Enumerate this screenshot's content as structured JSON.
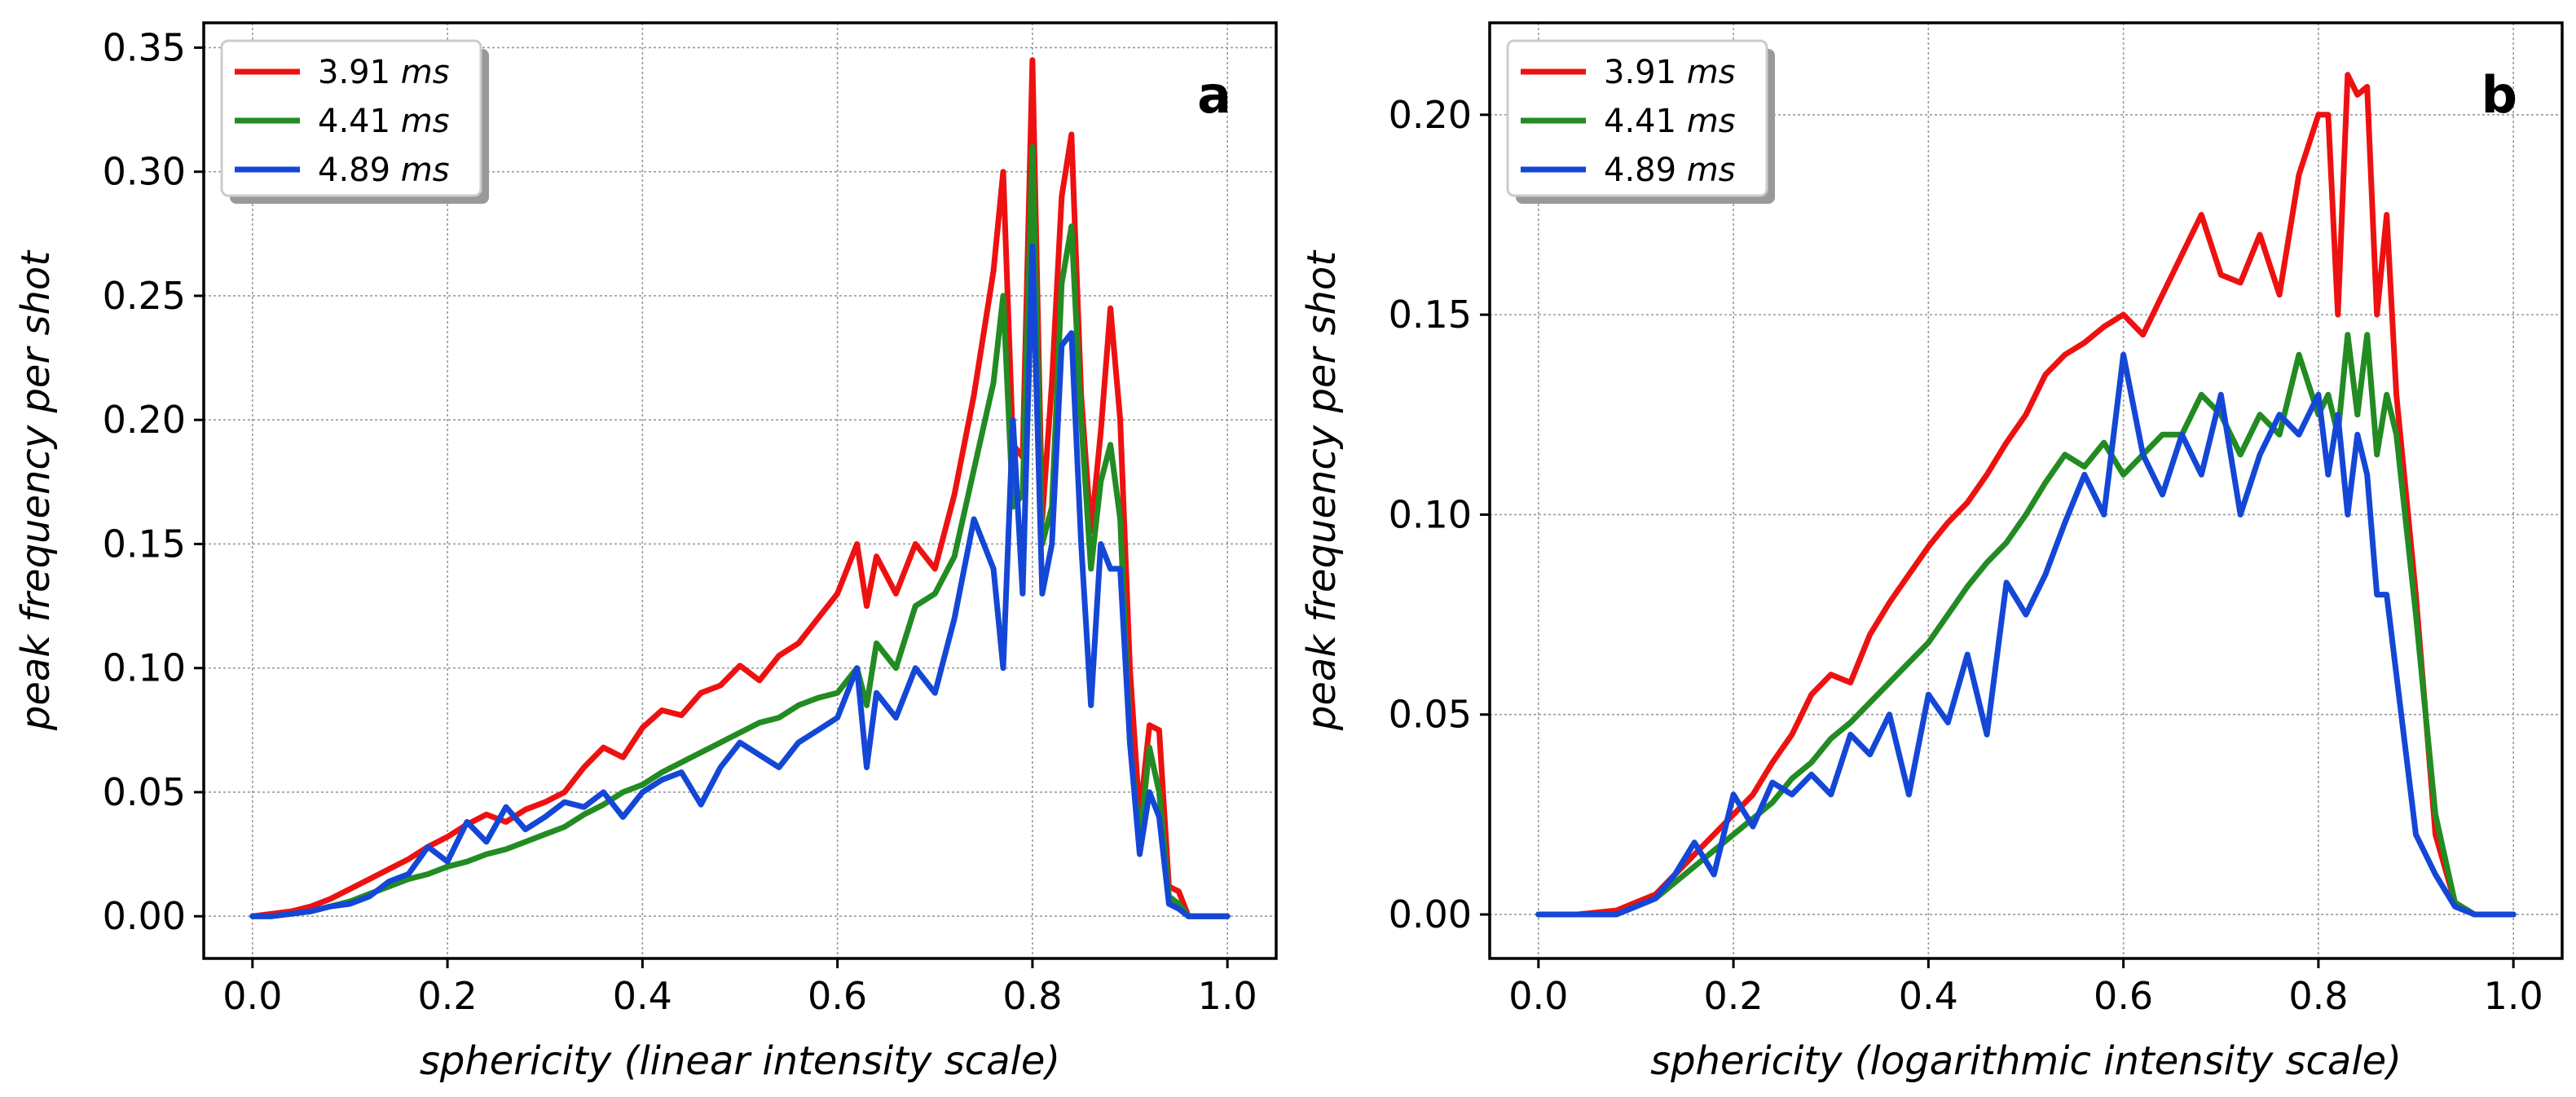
{
  "chart_data": [
    {
      "type": "line",
      "panel_label": "a",
      "xlabel": "sphericity (linear intensity scale)",
      "ylabel": "peak frequency per shot",
      "xlim": [
        -0.05,
        1.05
      ],
      "ylim": [
        -0.017,
        0.36
      ],
      "xticks": [
        0.0,
        0.2,
        0.4,
        0.6,
        0.8,
        1.0
      ],
      "xtick_labels": [
        "0.0",
        "0.2",
        "0.4",
        "0.6",
        "0.8",
        "1.0"
      ],
      "yticks": [
        0.0,
        0.05,
        0.1,
        0.15,
        0.2,
        0.25,
        0.3,
        0.35
      ],
      "ytick_labels": [
        "0.00",
        "0.05",
        "0.10",
        "0.15",
        "0.20",
        "0.25",
        "0.30",
        "0.35"
      ],
      "grid": true,
      "legend_position": "top-left",
      "series": [
        {
          "name": "3.91",
          "unit": "ms",
          "color": "#ee1111",
          "x": [
            0.0,
            0.02,
            0.04,
            0.06,
            0.08,
            0.1,
            0.12,
            0.14,
            0.16,
            0.18,
            0.2,
            0.22,
            0.24,
            0.26,
            0.28,
            0.3,
            0.32,
            0.34,
            0.36,
            0.38,
            0.4,
            0.42,
            0.44,
            0.46,
            0.48,
            0.5,
            0.52,
            0.54,
            0.56,
            0.58,
            0.6,
            0.62,
            0.63,
            0.64,
            0.66,
            0.68,
            0.7,
            0.72,
            0.74,
            0.76,
            0.77,
            0.78,
            0.79,
            0.8,
            0.81,
            0.82,
            0.83,
            0.84,
            0.85,
            0.86,
            0.87,
            0.88,
            0.89,
            0.9,
            0.91,
            0.92,
            0.93,
            0.94,
            0.95,
            0.96,
            0.98,
            1.0
          ],
          "values": [
            0.0,
            0.001,
            0.002,
            0.004,
            0.007,
            0.011,
            0.015,
            0.019,
            0.023,
            0.028,
            0.032,
            0.037,
            0.041,
            0.038,
            0.043,
            0.046,
            0.05,
            0.06,
            0.068,
            0.064,
            0.076,
            0.083,
            0.081,
            0.09,
            0.093,
            0.101,
            0.095,
            0.105,
            0.11,
            0.12,
            0.13,
            0.15,
            0.125,
            0.145,
            0.13,
            0.15,
            0.14,
            0.17,
            0.21,
            0.26,
            0.3,
            0.19,
            0.185,
            0.345,
            0.16,
            0.215,
            0.29,
            0.315,
            0.21,
            0.155,
            0.195,
            0.245,
            0.2,
            0.1,
            0.04,
            0.077,
            0.075,
            0.012,
            0.01,
            0.0,
            0.0,
            0.0
          ]
        },
        {
          "name": "4.41",
          "unit": "ms",
          "color": "#228b22",
          "x": [
            0.0,
            0.02,
            0.04,
            0.06,
            0.08,
            0.1,
            0.12,
            0.14,
            0.16,
            0.18,
            0.2,
            0.22,
            0.24,
            0.26,
            0.28,
            0.3,
            0.32,
            0.34,
            0.36,
            0.38,
            0.4,
            0.42,
            0.44,
            0.46,
            0.48,
            0.5,
            0.52,
            0.54,
            0.56,
            0.58,
            0.6,
            0.62,
            0.63,
            0.64,
            0.66,
            0.68,
            0.7,
            0.72,
            0.74,
            0.76,
            0.77,
            0.78,
            0.79,
            0.8,
            0.81,
            0.82,
            0.83,
            0.84,
            0.85,
            0.86,
            0.87,
            0.88,
            0.89,
            0.9,
            0.91,
            0.92,
            0.93,
            0.94,
            0.95,
            0.96,
            0.98,
            1.0
          ],
          "values": [
            0.0,
            0.0,
            0.001,
            0.002,
            0.004,
            0.006,
            0.009,
            0.012,
            0.015,
            0.017,
            0.02,
            0.022,
            0.025,
            0.027,
            0.03,
            0.033,
            0.036,
            0.041,
            0.045,
            0.05,
            0.053,
            0.058,
            0.062,
            0.066,
            0.07,
            0.074,
            0.078,
            0.08,
            0.085,
            0.088,
            0.09,
            0.1,
            0.085,
            0.11,
            0.1,
            0.125,
            0.13,
            0.145,
            0.18,
            0.215,
            0.25,
            0.165,
            0.17,
            0.31,
            0.15,
            0.165,
            0.255,
            0.278,
            0.2,
            0.14,
            0.175,
            0.19,
            0.16,
            0.07,
            0.03,
            0.068,
            0.05,
            0.008,
            0.005,
            0.0,
            0.0,
            0.0
          ]
        },
        {
          "name": "4.89",
          "unit": "ms",
          "color": "#1447d6",
          "x": [
            0.0,
            0.02,
            0.04,
            0.06,
            0.08,
            0.1,
            0.12,
            0.14,
            0.16,
            0.18,
            0.2,
            0.22,
            0.24,
            0.26,
            0.28,
            0.3,
            0.32,
            0.34,
            0.36,
            0.38,
            0.4,
            0.42,
            0.44,
            0.46,
            0.48,
            0.5,
            0.52,
            0.54,
            0.56,
            0.58,
            0.6,
            0.62,
            0.63,
            0.64,
            0.66,
            0.68,
            0.7,
            0.72,
            0.74,
            0.76,
            0.77,
            0.78,
            0.79,
            0.8,
            0.81,
            0.82,
            0.83,
            0.84,
            0.85,
            0.86,
            0.87,
            0.88,
            0.89,
            0.9,
            0.91,
            0.92,
            0.93,
            0.94,
            0.95,
            0.96,
            0.98,
            1.0
          ],
          "values": [
            0.0,
            0.0,
            0.001,
            0.002,
            0.004,
            0.005,
            0.008,
            0.014,
            0.017,
            0.028,
            0.022,
            0.038,
            0.03,
            0.044,
            0.035,
            0.04,
            0.046,
            0.044,
            0.05,
            0.04,
            0.05,
            0.055,
            0.058,
            0.045,
            0.06,
            0.07,
            0.065,
            0.06,
            0.07,
            0.075,
            0.08,
            0.1,
            0.06,
            0.09,
            0.08,
            0.1,
            0.09,
            0.12,
            0.16,
            0.14,
            0.1,
            0.2,
            0.13,
            0.27,
            0.13,
            0.15,
            0.23,
            0.235,
            0.15,
            0.085,
            0.15,
            0.14,
            0.14,
            0.07,
            0.025,
            0.05,
            0.04,
            0.005,
            0.003,
            0.0,
            0.0,
            0.0
          ]
        }
      ]
    },
    {
      "type": "line",
      "panel_label": "b",
      "xlabel": "sphericity (logarithmic intensity scale)",
      "ylabel": "peak frequency per shot",
      "xlim": [
        -0.05,
        1.05
      ],
      "ylim": [
        -0.011,
        0.223
      ],
      "xticks": [
        0.0,
        0.2,
        0.4,
        0.6,
        0.8,
        1.0
      ],
      "xtick_labels": [
        "0.0",
        "0.2",
        "0.4",
        "0.6",
        "0.8",
        "1.0"
      ],
      "yticks": [
        0.0,
        0.05,
        0.1,
        0.15,
        0.2
      ],
      "ytick_labels": [
        "0.00",
        "0.05",
        "0.10",
        "0.15",
        "0.20"
      ],
      "grid": true,
      "legend_position": "top-left",
      "series": [
        {
          "name": "3.91",
          "unit": "ms",
          "color": "#ee1111",
          "x": [
            0.0,
            0.04,
            0.08,
            0.1,
            0.12,
            0.14,
            0.16,
            0.18,
            0.2,
            0.22,
            0.24,
            0.26,
            0.28,
            0.3,
            0.32,
            0.34,
            0.36,
            0.38,
            0.4,
            0.42,
            0.44,
            0.46,
            0.48,
            0.5,
            0.52,
            0.54,
            0.56,
            0.58,
            0.6,
            0.62,
            0.64,
            0.66,
            0.68,
            0.7,
            0.72,
            0.74,
            0.76,
            0.78,
            0.8,
            0.81,
            0.82,
            0.83,
            0.84,
            0.85,
            0.86,
            0.87,
            0.88,
            0.9,
            0.92,
            0.94,
            0.96,
            0.98,
            1.0
          ],
          "values": [
            0.0,
            0.0,
            0.001,
            0.003,
            0.005,
            0.01,
            0.015,
            0.02,
            0.025,
            0.03,
            0.038,
            0.045,
            0.055,
            0.06,
            0.058,
            0.07,
            0.078,
            0.085,
            0.092,
            0.098,
            0.103,
            0.11,
            0.118,
            0.125,
            0.135,
            0.14,
            0.143,
            0.147,
            0.15,
            0.145,
            0.155,
            0.165,
            0.175,
            0.16,
            0.158,
            0.17,
            0.155,
            0.185,
            0.2,
            0.2,
            0.15,
            0.21,
            0.205,
            0.207,
            0.15,
            0.175,
            0.13,
            0.08,
            0.02,
            0.003,
            0.0,
            0.0,
            0.0
          ]
        },
        {
          "name": "4.41",
          "unit": "ms",
          "color": "#228b22",
          "x": [
            0.0,
            0.04,
            0.08,
            0.1,
            0.12,
            0.14,
            0.16,
            0.18,
            0.2,
            0.22,
            0.24,
            0.26,
            0.28,
            0.3,
            0.32,
            0.34,
            0.36,
            0.38,
            0.4,
            0.42,
            0.44,
            0.46,
            0.48,
            0.5,
            0.52,
            0.54,
            0.56,
            0.58,
            0.6,
            0.62,
            0.64,
            0.66,
            0.68,
            0.7,
            0.72,
            0.74,
            0.76,
            0.78,
            0.8,
            0.81,
            0.82,
            0.83,
            0.84,
            0.85,
            0.86,
            0.87,
            0.88,
            0.9,
            0.92,
            0.94,
            0.96,
            0.98,
            1.0
          ],
          "values": [
            0.0,
            0.0,
            0.0,
            0.002,
            0.004,
            0.008,
            0.012,
            0.016,
            0.02,
            0.024,
            0.028,
            0.034,
            0.038,
            0.044,
            0.048,
            0.053,
            0.058,
            0.063,
            0.068,
            0.075,
            0.082,
            0.088,
            0.093,
            0.1,
            0.108,
            0.115,
            0.112,
            0.118,
            0.11,
            0.115,
            0.12,
            0.12,
            0.13,
            0.125,
            0.115,
            0.125,
            0.12,
            0.14,
            0.125,
            0.13,
            0.12,
            0.145,
            0.125,
            0.145,
            0.115,
            0.13,
            0.12,
            0.075,
            0.025,
            0.003,
            0.0,
            0.0,
            0.0
          ]
        },
        {
          "name": "4.89",
          "unit": "ms",
          "color": "#1447d6",
          "x": [
            0.0,
            0.04,
            0.08,
            0.1,
            0.12,
            0.14,
            0.16,
            0.18,
            0.2,
            0.22,
            0.24,
            0.26,
            0.28,
            0.3,
            0.32,
            0.34,
            0.36,
            0.38,
            0.4,
            0.42,
            0.44,
            0.46,
            0.48,
            0.5,
            0.52,
            0.54,
            0.56,
            0.58,
            0.6,
            0.62,
            0.64,
            0.66,
            0.68,
            0.7,
            0.72,
            0.74,
            0.76,
            0.78,
            0.8,
            0.81,
            0.82,
            0.83,
            0.84,
            0.85,
            0.86,
            0.87,
            0.88,
            0.9,
            0.92,
            0.94,
            0.96,
            0.98,
            1.0
          ],
          "values": [
            0.0,
            0.0,
            0.0,
            0.002,
            0.004,
            0.01,
            0.018,
            0.01,
            0.03,
            0.022,
            0.033,
            0.03,
            0.035,
            0.03,
            0.045,
            0.04,
            0.05,
            0.03,
            0.055,
            0.048,
            0.065,
            0.045,
            0.083,
            0.075,
            0.085,
            0.098,
            0.11,
            0.1,
            0.14,
            0.115,
            0.105,
            0.12,
            0.11,
            0.13,
            0.1,
            0.115,
            0.125,
            0.12,
            0.13,
            0.11,
            0.125,
            0.1,
            0.12,
            0.11,
            0.08,
            0.08,
            0.06,
            0.02,
            0.01,
            0.002,
            0.0,
            0.0,
            0.0
          ]
        }
      ]
    }
  ]
}
